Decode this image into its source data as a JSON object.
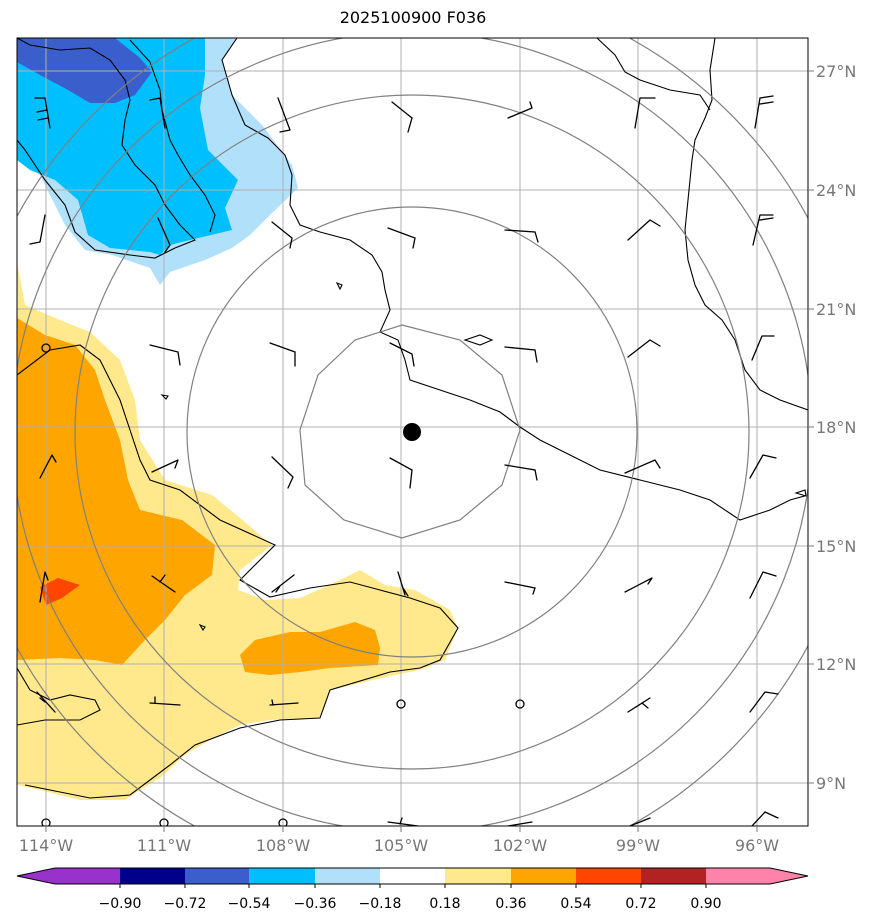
{
  "title": "2025100900 F036",
  "map": {
    "lon_range": [
      -115,
      -95
    ],
    "lat_range": [
      8,
      28
    ],
    "lon_ticks": [
      -114,
      -111,
      -108,
      -105,
      -102,
      -99,
      -96
    ],
    "lat_ticks": [
      9,
      12,
      15,
      18,
      21,
      24,
      27
    ],
    "lon_tick_labels": [
      "114°W",
      "111°W",
      "108°W",
      "105°W",
      "102°W",
      "99°W",
      "96°W"
    ],
    "lat_tick_labels": [
      "9°N",
      "12°N",
      "15°N",
      "18°N",
      "21°N",
      "24°N",
      "27°N"
    ],
    "gridlines": true,
    "center": {
      "lon": -104.7,
      "lat": 17.8
    },
    "range_rings_deg": [
      2.5,
      5,
      7.5,
      10
    ]
  },
  "colorbar": {
    "ticks": [
      "−0.90",
      "−0.72",
      "−0.54",
      "−0.36",
      "−0.18",
      "0.18",
      "0.36",
      "0.54",
      "0.72",
      "0.90"
    ],
    "colors": [
      "#9932cc",
      "#00008b",
      "#3a5fcd",
      "#00bfff",
      "#b0e0fa",
      "#ffffff",
      "#ffe98c",
      "#ffa500",
      "#ff4500",
      "#b22222",
      "#ff82ab"
    ]
  },
  "chart_data": {
    "type": "map",
    "field_units": "",
    "wind_barbs_note": "wind barbs on 3-degree grid; circles denote calm",
    "calm_points": [
      {
        "lon": -114,
        "lat": 20
      },
      {
        "lon": -105,
        "lat": 11
      },
      {
        "lon": -102,
        "lat": 11
      },
      {
        "lon": -114,
        "lat": 8
      },
      {
        "lon": -111,
        "lat": 8
      },
      {
        "lon": -108,
        "lat": 8
      }
    ]
  }
}
